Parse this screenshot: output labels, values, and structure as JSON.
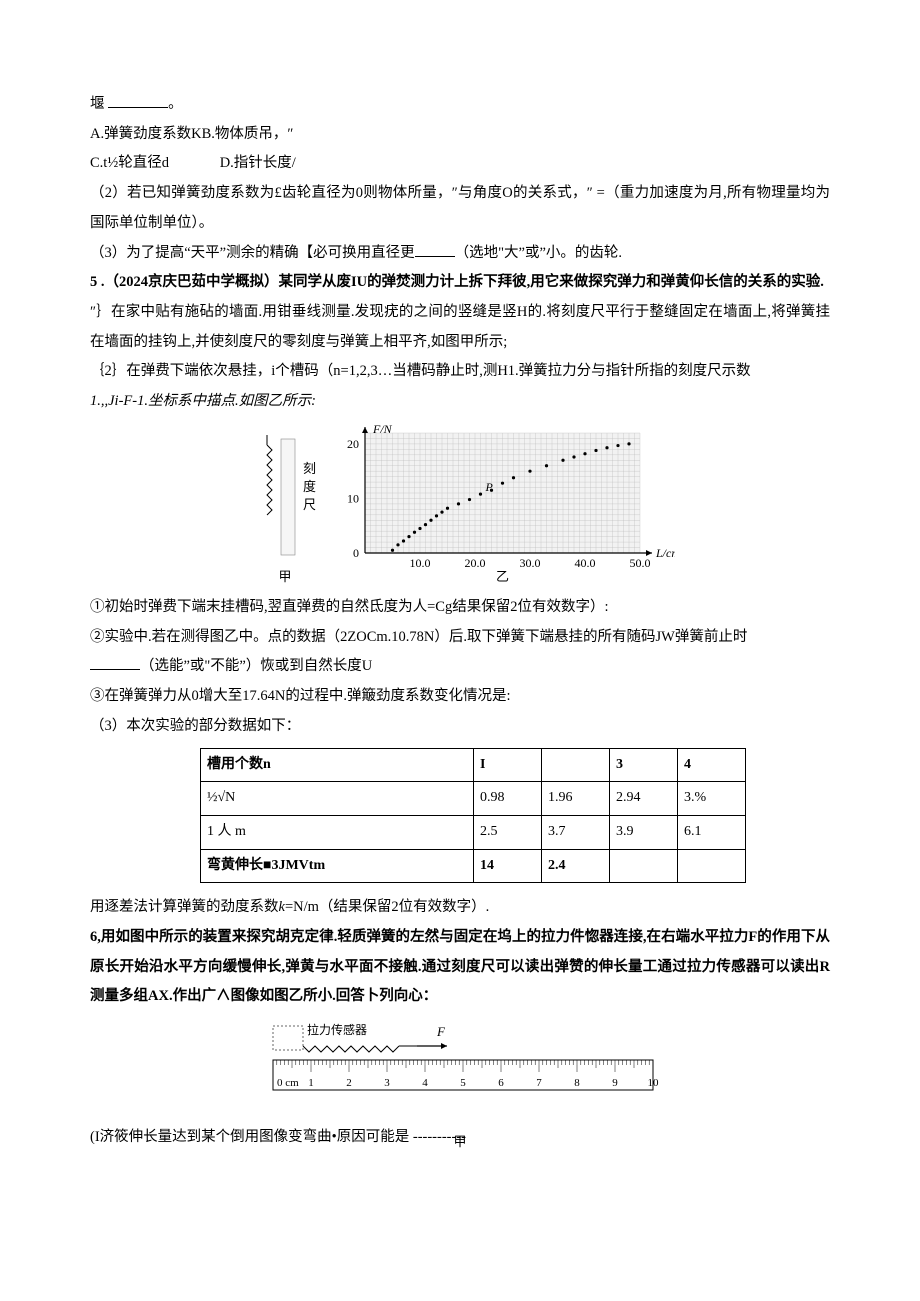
{
  "line_blank_suffix": "。",
  "optA": "A.弹簧劲度系数KB.物体质吊，″",
  "optC": "C.t½轮直径d",
  "optD": "D.指针长度/",
  "q2": "（2）若已知弹簧劲度系数为£齿轮直径为0则物体所量，″与角度O的关系式，″ =（重力加速度为月,所有物理量均为国际单位制单位）。",
  "q3": "（3）为了提高“天平”测余的精确【必可换用直径更",
  "q3_suffix": "（选地\"大”或”小。的齿轮.",
  "q5_head": "5 .（2024京庆巴茹中学概拟）某同学从废IU的弹焚测力计上拆下拜彼,用它来做探究弹力和弹黄仰长信的关系的实验.",
  "q5_s1": "″｝在家中贴有施砧的墙面.用钳垂线测量.发现疣的之间的竖缝是竖H的.将刻度尺平行于整缝固定在墙面上,将弹簧挂在墙面的挂钩上,并使刻度尺的零刻度与弹簧上相平齐,如图甲所示;",
  "q5_s2a": "｛2｝在弹费下端依次悬挂，i个槽码（n=1,2,3…当槽码静止时,测H1.弹簧拉力分与指针所指的刻度尺示数",
  "q5_s2b": "1.,,Ji-F-1.坐标系中描点.如图乙所示:",
  "chart": {
    "y_label": "F/N",
    "x_label": "L/cm",
    "y_ticks": [
      0,
      10,
      20
    ],
    "x_ticks": [
      10.0,
      20.0,
      30.0,
      40.0,
      50.0
    ],
    "x_range": [
      0,
      50
    ],
    "y_range": [
      0,
      22
    ],
    "plot_bg": "#f2f2f2",
    "grid_color": "#bdbdbd",
    "axis_color": "#000000",
    "point_color": "#000000",
    "points": [
      [
        5,
        0.5
      ],
      [
        6,
        1.5
      ],
      [
        7,
        2.2
      ],
      [
        8,
        3.0
      ],
      [
        9,
        3.8
      ],
      [
        10,
        4.5
      ],
      [
        11,
        5.2
      ],
      [
        12,
        6.0
      ],
      [
        13,
        6.8
      ],
      [
        14,
        7.5
      ],
      [
        15,
        8.2
      ],
      [
        17,
        9.0
      ],
      [
        19,
        9.8
      ],
      [
        21,
        10.8
      ],
      [
        23,
        11.5
      ],
      [
        25,
        12.8
      ],
      [
        27,
        13.8
      ],
      [
        30,
        15.0
      ],
      [
        33,
        16.0
      ],
      [
        36,
        17.0
      ],
      [
        38,
        17.6
      ],
      [
        40,
        18.2
      ],
      [
        42,
        18.8
      ],
      [
        44,
        19.3
      ],
      [
        46,
        19.7
      ],
      [
        48,
        20.0
      ]
    ],
    "caption_left": "甲",
    "caption_right": "乙",
    "side_label": "刻度尺",
    "p_label": "P"
  },
  "q5_c1a": "①初始时弹费下端末挂槽码,翌直弹费的自然氐度为人=Cg结果保留2位有效数字）:",
  "q5_c2a": "②实验中.若在测得图乙中。点的数据（2ZOCm.10.78N）后.取下弹簧下端悬挂的所有随码JW弹簧前止时",
  "q5_c2b_prefix": "",
  "q5_c2b_suffix": "（选能”或\"不能”）恢或到自然长度U",
  "q5_c3": "③在弹簧弹力从0增大至17.64N的过程中.弹簸劲度系数变化情况是:",
  "q5_3": "（3）本次实验的部分数据如下：",
  "table": {
    "rows": [
      [
        "槽用个数n",
        "I",
        "",
        "3",
        "4"
      ],
      [
        "½√N",
        "0.98",
        "1.96",
        "2.94",
        "3.%"
      ],
      [
        "1 人 m",
        "2.5",
        "3.7",
        "3.9",
        "6.1"
      ],
      [
        "弯黄伸长■3JMVtm",
        "14",
        "2.4",
        "",
        ""
      ]
    ]
  },
  "q5_tail": "用逐差法计算弹簧的劲度系数k=N/m（结果保留2位有效数字）.",
  "q6_p1": "6,用如图中所示的装置来探究胡克定律.轻质弹簧的左然与固定在坞上的拉力件惚器连接,在右端水平拉力F的作用下从原长开始沿水平方向缓慢伸长,弹黄与水平面不接触.通过刻度尺可以读出弹赞的伸长量工通过拉力传感器可以读出R测量多组AX.作出广∧图像如图乙所小.回答卜列向心：",
  "ruler": {
    "sensor_label": "拉力传感器",
    "force_label": "F",
    "left_text": "0 cm",
    "ticks": [
      1,
      2,
      3,
      4,
      5,
      6,
      7,
      8,
      9,
      10
    ],
    "caption": "甲"
  },
  "q6_i": "(I济筱伸长量达到某个倒用图像变弯曲•原因可能是",
  "dash": " -----------"
}
